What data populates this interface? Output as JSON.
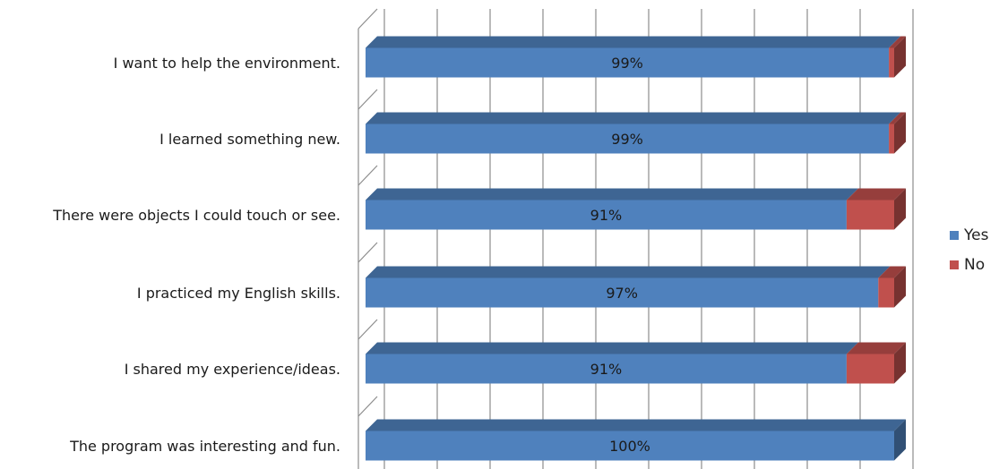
{
  "chart_data": {
    "type": "bar",
    "orientation": "horizontal",
    "stacked": true,
    "style": "3d",
    "categories": [
      "I want to help the environment.",
      "I learned something new.",
      "There were objects I could touch or see.",
      "I practiced my English skills.",
      "I shared my experience/ideas.",
      "The program was interesting and fun."
    ],
    "series": [
      {
        "name": "Yes",
        "color": "#4F81BD",
        "values": [
          99,
          99,
          91,
          97,
          91,
          100
        ],
        "labels": [
          "99%",
          "99%",
          "91%",
          "97%",
          "91%",
          "100%"
        ]
      },
      {
        "name": "No",
        "color": "#C0504D",
        "values": [
          1,
          1,
          9,
          3,
          9,
          0
        ]
      }
    ],
    "xlim": [
      0,
      100
    ],
    "grid": true,
    "legend_position": "right",
    "title": "",
    "xlabel": "",
    "ylabel": ""
  }
}
